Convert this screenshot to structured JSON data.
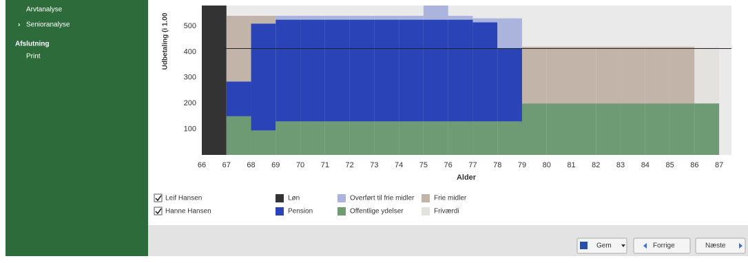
{
  "sidebar": {
    "items": [
      {
        "label": "Arvtanalyse",
        "kind": "sub"
      },
      {
        "label": "Senioranalyse",
        "kind": "sub-open"
      },
      {
        "label": "Afslutning",
        "kind": "section"
      },
      {
        "label": "Print",
        "kind": "sub"
      }
    ]
  },
  "persons": [
    "Leif Hansen",
    "Hanne Hansen"
  ],
  "buttons": [
    "Gem",
    "Forrige",
    "Næste"
  ],
  "chart_data": {
    "type": "stacked-step-area",
    "y_label": "Udbetaling (i 1.00",
    "x_label": "Alder",
    "x": [
      66,
      67,
      68,
      69,
      70,
      71,
      72,
      73,
      74,
      75,
      76,
      77,
      78,
      79,
      80,
      81,
      82,
      83,
      84,
      85,
      86
    ],
    "series": [
      {
        "name": "Løn",
        "color": "#333333",
        "values": [
          580,
          0,
          0,
          0,
          0,
          0,
          0,
          0,
          0,
          0,
          0,
          0,
          0,
          0,
          0,
          0,
          0,
          0,
          0,
          0,
          0
        ]
      },
      {
        "name": "Pension",
        "color": "#2a44b8",
        "values": [
          0,
          135,
          415,
          395,
          395,
          395,
          395,
          395,
          395,
          395,
          395,
          385,
          285,
          0,
          0,
          0,
          0,
          0,
          0,
          0,
          0
        ]
      },
      {
        "name": "Overført til frie midler",
        "color": "#aab4dc",
        "values": [
          0,
          0,
          0,
          15,
          15,
          15,
          15,
          15,
          15,
          55,
          15,
          15,
          115,
          0,
          0,
          0,
          0,
          0,
          0,
          0,
          0
        ]
      },
      {
        "name": "Offentlige ydelser",
        "color": "#6e9a74",
        "values": [
          0,
          150,
          95,
          130,
          130,
          130,
          130,
          130,
          130,
          130,
          130,
          130,
          130,
          200,
          200,
          200,
          200,
          200,
          200,
          200,
          200
        ]
      },
      {
        "name": "Frie midler",
        "color": "#c2b4a8",
        "values": [
          0,
          255,
          30,
          0,
          0,
          0,
          0,
          0,
          0,
          0,
          0,
          0,
          0,
          220,
          220,
          220,
          220,
          220,
          220,
          220,
          0
        ]
      },
      {
        "name": "Friværdi",
        "color": "#e4e2de",
        "values": [
          0,
          0,
          0,
          0,
          0,
          0,
          0,
          0,
          0,
          0,
          0,
          0,
          0,
          0,
          0,
          0,
          0,
          0,
          0,
          0,
          220
        ]
      }
    ],
    "reference_line": 413,
    "xlim": [
      66,
      87.5
    ],
    "ylim": [
      0,
      580
    ],
    "xticks": [
      66,
      67,
      68,
      69,
      70,
      71,
      72,
      73,
      74,
      75,
      76,
      77,
      78,
      79,
      80,
      81,
      82,
      83,
      84,
      85,
      86,
      87
    ],
    "yticks": [
      100,
      200,
      300,
      400,
      500
    ]
  }
}
